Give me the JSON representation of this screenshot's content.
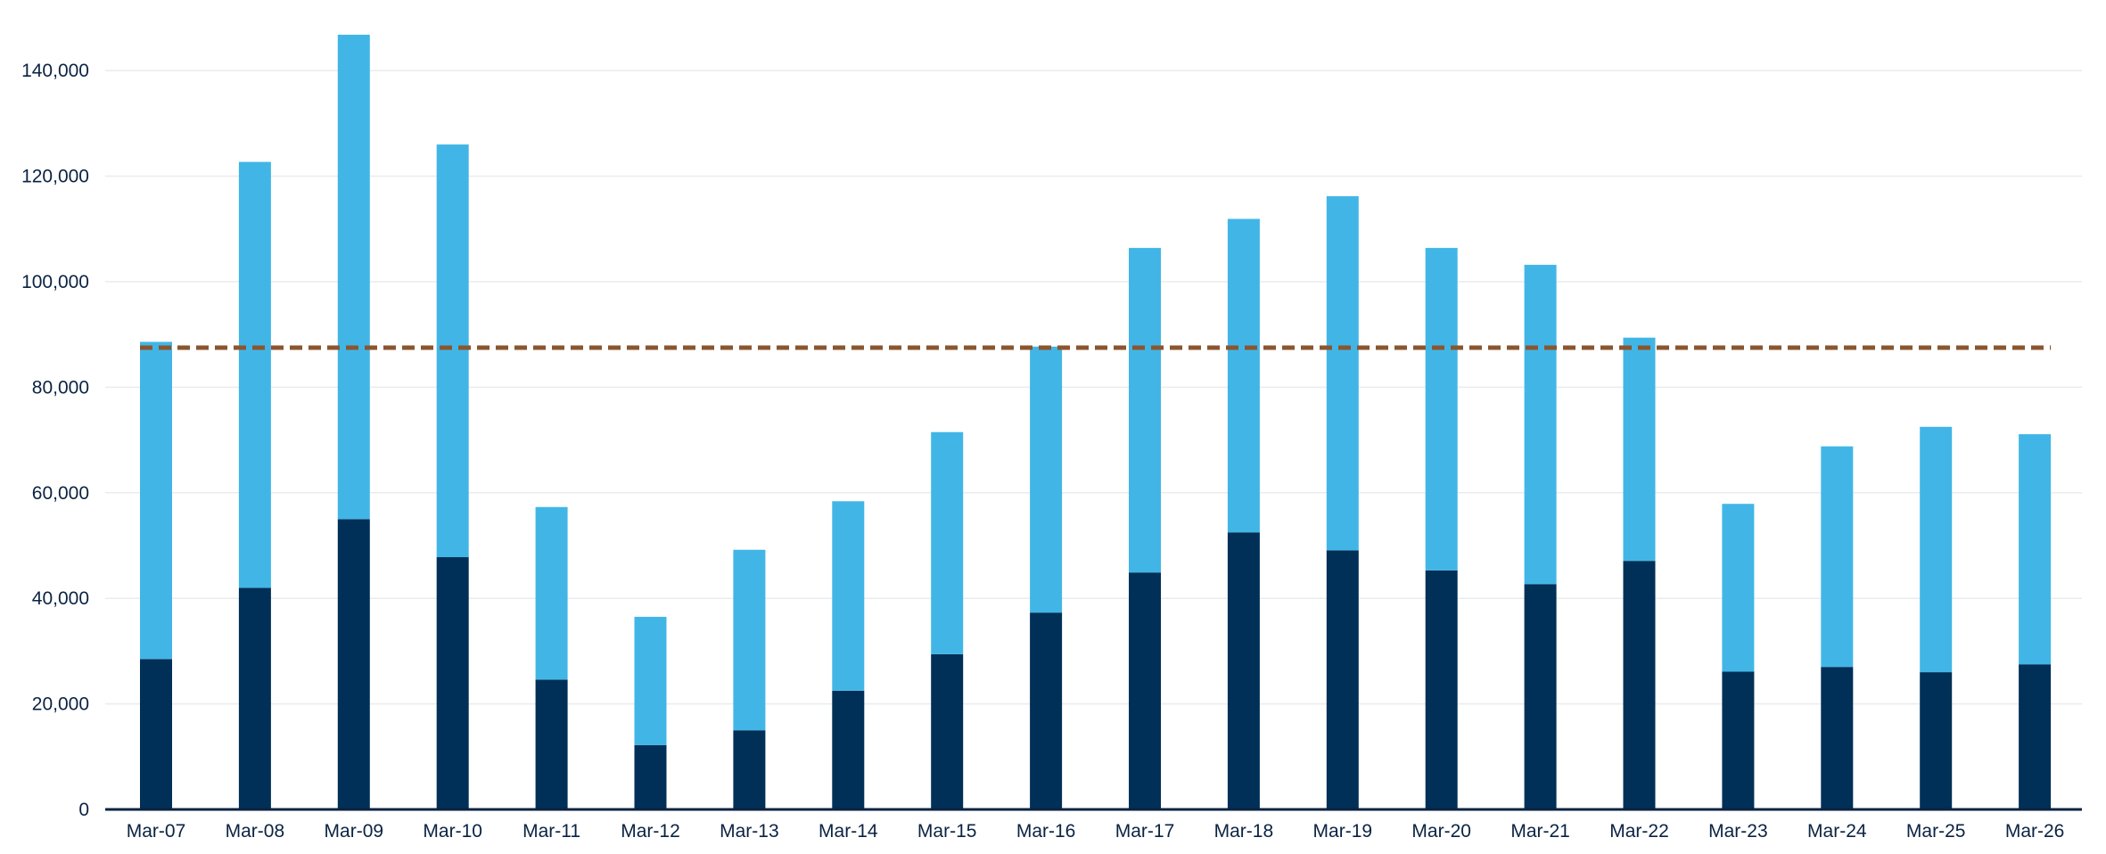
{
  "chart_data": {
    "type": "bar",
    "stacked": true,
    "categories": [
      "Mar-07",
      "Mar-08",
      "Mar-09",
      "Mar-10",
      "Mar-11",
      "Mar-12",
      "Mar-13",
      "Mar-14",
      "Mar-15",
      "Mar-16",
      "Mar-17",
      "Mar-18",
      "Mar-19",
      "Mar-20",
      "Mar-21",
      "Mar-22",
      "Mar-23",
      "Mar-24",
      "Mar-25",
      "Mar-26"
    ],
    "series": [
      {
        "color": "#003057",
        "values": [
          28500,
          42000,
          55000,
          47800,
          24600,
          12200,
          15000,
          22500,
          29400,
          37300,
          44900,
          52500,
          49100,
          45300,
          42700,
          47100,
          26100,
          27000,
          26000,
          27500
        ]
      },
      {
        "color": "#41b6e6",
        "values": [
          60100,
          80700,
          91800,
          78200,
          32700,
          24300,
          34200,
          35900,
          42100,
          50400,
          61500,
          59400,
          67100,
          61100,
          60500,
          42300,
          31800,
          41800,
          46500,
          43600
        ]
      }
    ],
    "reference_line": {
      "value": 87500,
      "color": "#8b5530",
      "style": "dashed"
    },
    "yticks": [
      "0",
      "20,000",
      "40,000",
      "60,000",
      "80,000",
      "100,000",
      "120,000",
      "140,000"
    ],
    "ylim": [
      0,
      150000
    ],
    "ytick_step": 20000,
    "grid": true,
    "legend": "none",
    "title": "",
    "xlabel": "",
    "ylabel": ""
  }
}
